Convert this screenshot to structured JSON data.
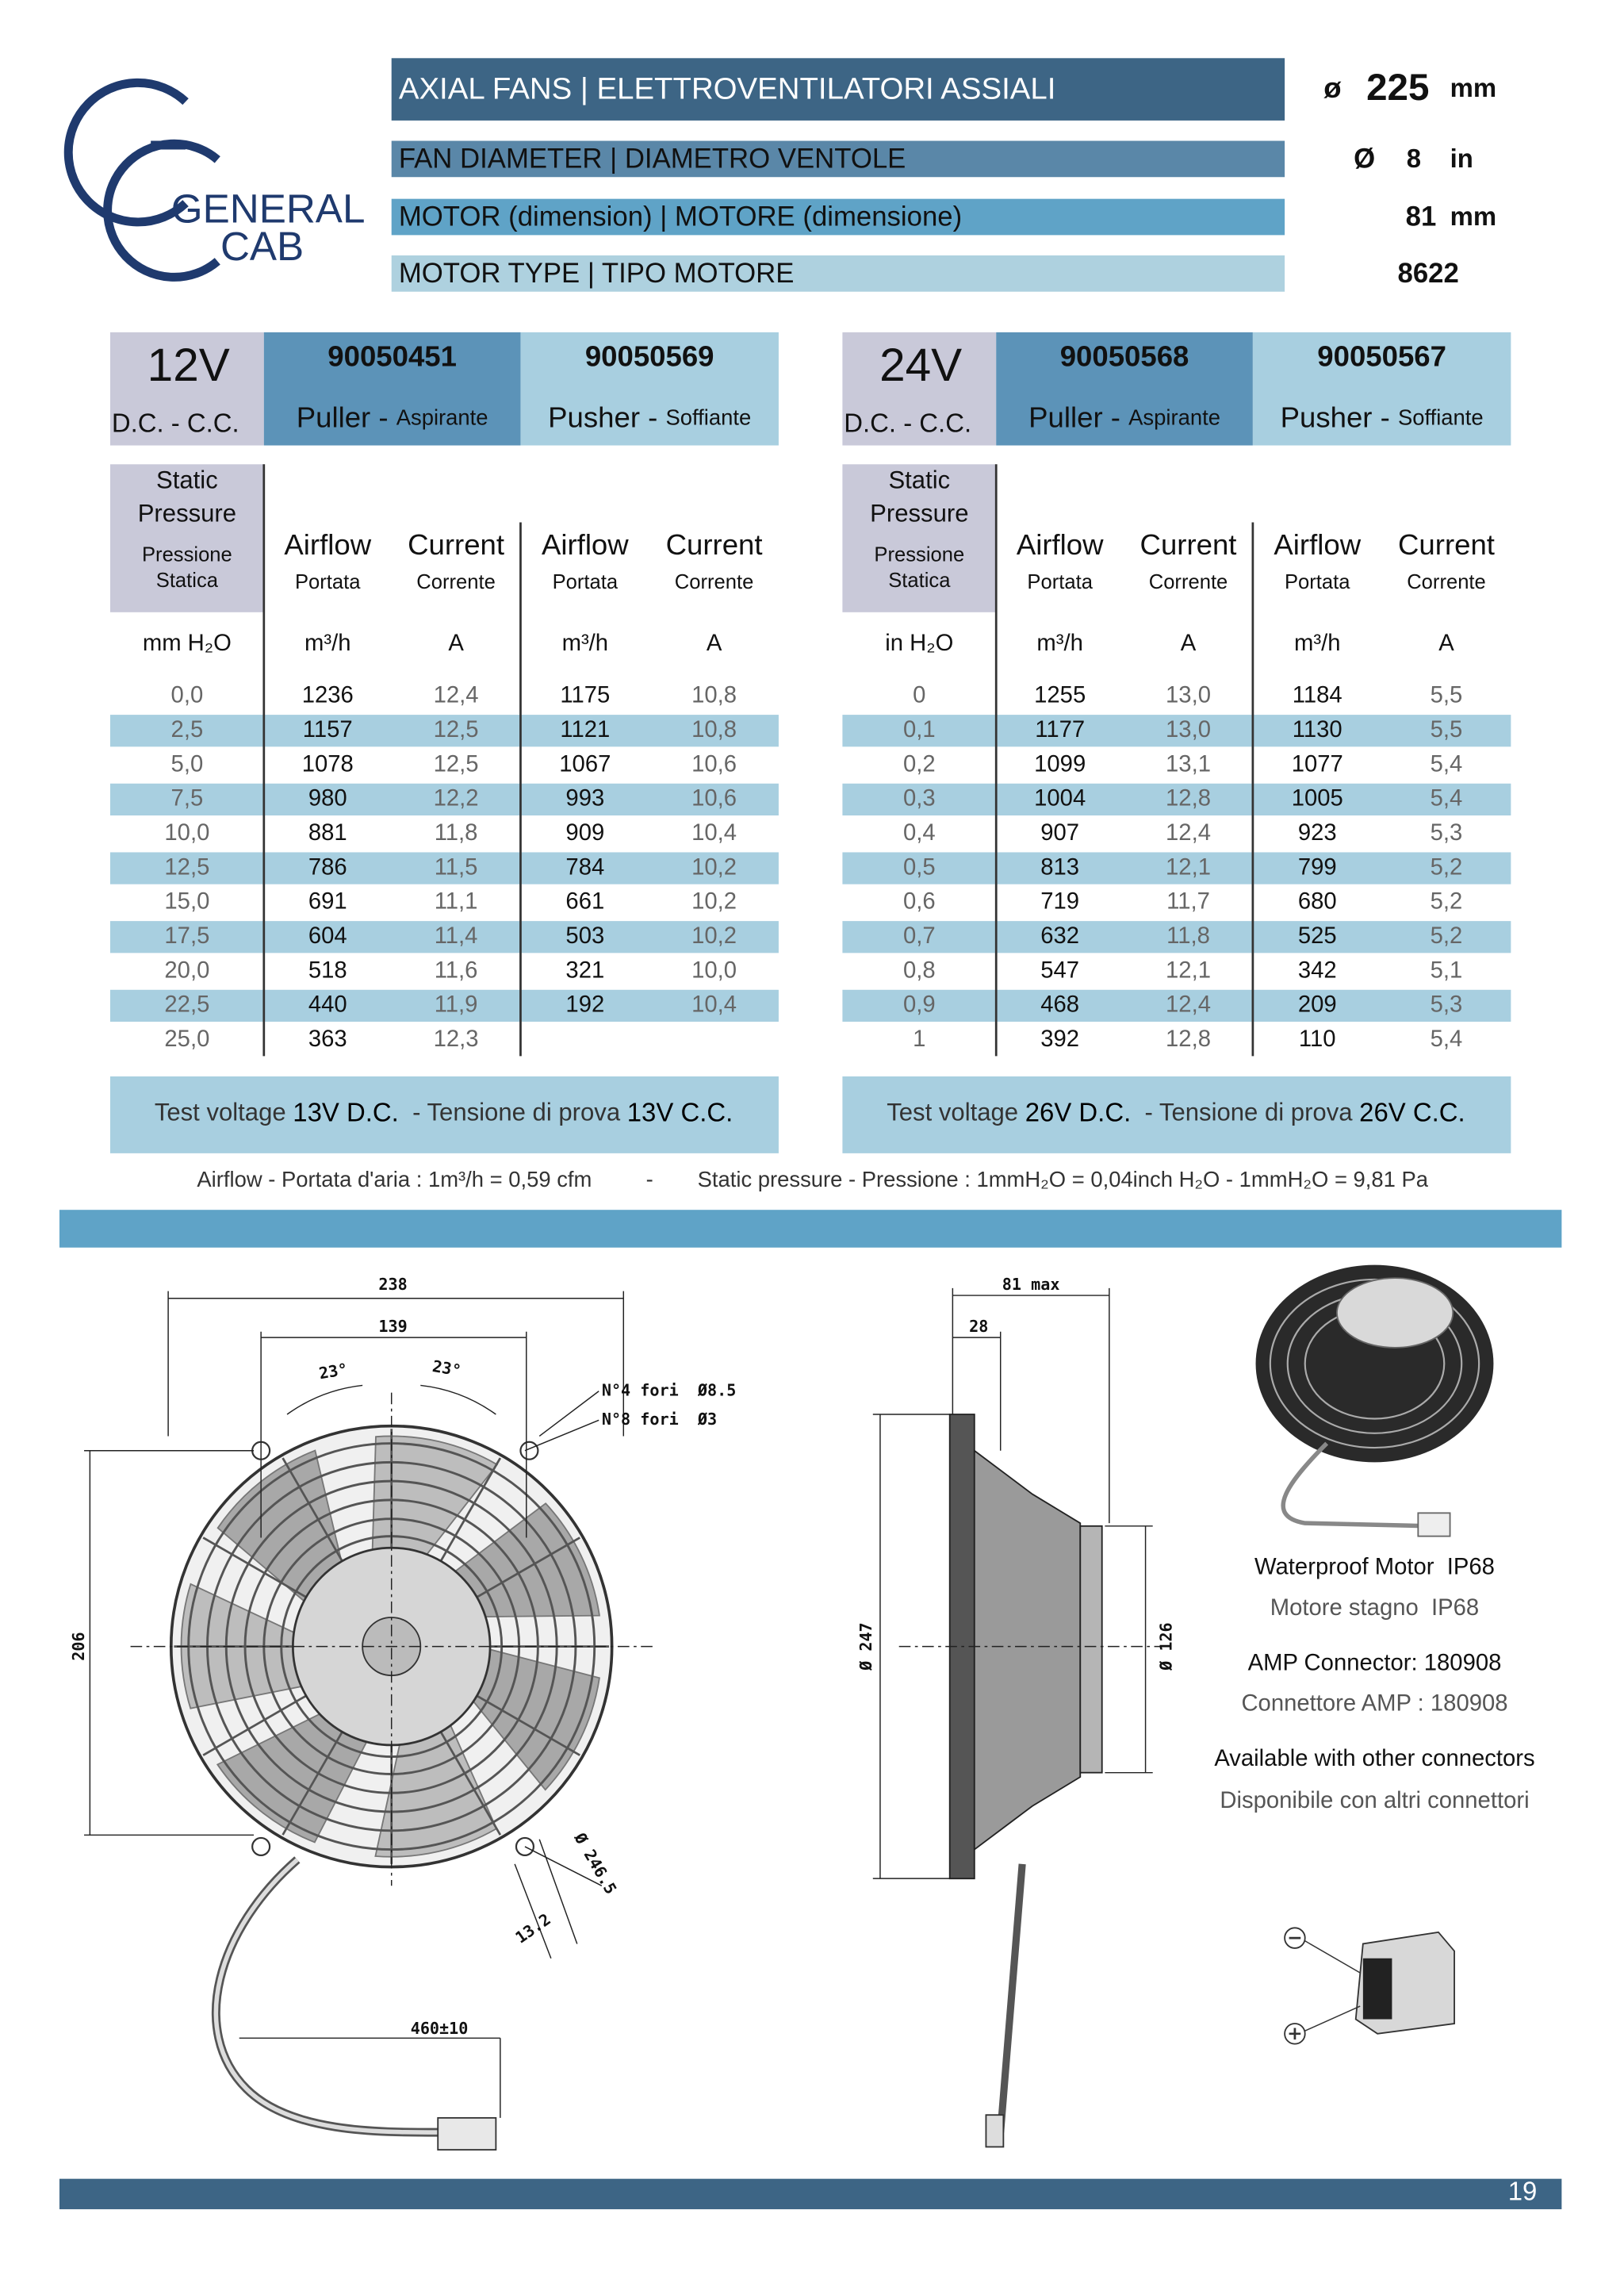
{
  "header": {
    "logo": [
      "GENERAL",
      "CAB"
    ],
    "rows": [
      {
        "label": "AXIAL FANS | ELETTROVENTILATORI ASSIALI",
        "symbol": "ø",
        "value": "225",
        "unit": "mm"
      },
      {
        "label": "FAN DIAMETER | DIAMETRO VENTOLE",
        "symbol": "Ø",
        "value": "8",
        "unit": "in"
      },
      {
        "label": "MOTOR (dimension) | MOTORE (dimensione)",
        "value": "81",
        "unit": "mm"
      },
      {
        "label": "MOTOR TYPE | TIPO MOTORE",
        "value": "8622"
      }
    ]
  },
  "tables": [
    {
      "voltage": "12V",
      "current_type": "D.C. - C.C.",
      "models": [
        {
          "code": "90050451",
          "type": "Puller - ",
          "type_it": "Aspirante"
        },
        {
          "code": "90050569",
          "type": "Pusher - ",
          "type_it": "Soffiante"
        }
      ],
      "pressure_header": [
        "Static",
        "Pressure",
        "Pressione",
        "Statica"
      ],
      "columns": [
        {
          "name": "Airflow",
          "name_it": "Portata"
        },
        {
          "name": "Current",
          "name_it": "Corrente"
        },
        {
          "name": "Airflow",
          "name_it": "Portata"
        },
        {
          "name": "Current",
          "name_it": "Corrente"
        }
      ],
      "units": [
        "mm H₂O",
        "m³/h",
        "A",
        "m³/h",
        "A"
      ],
      "rows": [
        [
          "0,0",
          "1236",
          "12,4",
          "1175",
          "10,8"
        ],
        [
          "2,5",
          "1157",
          "12,5",
          "1121",
          "10,8"
        ],
        [
          "5,0",
          "1078",
          "12,5",
          "1067",
          "10,6"
        ],
        [
          "7,5",
          "980",
          "12,2",
          "993",
          "10,6"
        ],
        [
          "10,0",
          "881",
          "11,8",
          "909",
          "10,4"
        ],
        [
          "12,5",
          "786",
          "11,5",
          "784",
          "10,2"
        ],
        [
          "15,0",
          "691",
          "11,1",
          "661",
          "10,2"
        ],
        [
          "17,5",
          "604",
          "11,4",
          "503",
          "10,2"
        ],
        [
          "20,0",
          "518",
          "11,6",
          "321",
          "10,0"
        ],
        [
          "22,5",
          "440",
          "11,9",
          "192",
          "10,4"
        ],
        [
          "25,0",
          "363",
          "12,3"
        ]
      ],
      "test_voltage": [
        "Test voltage ",
        "13V D.C.",
        "  - Tensione di prova ",
        "13V C.C."
      ]
    },
    {
      "voltage": "24V",
      "current_type": "D.C. - C.C.",
      "models": [
        {
          "code": "90050568",
          "type": "Puller - ",
          "type_it": "Aspirante"
        },
        {
          "code": "90050567",
          "type": "Pusher - ",
          "type_it": "Soffiante"
        }
      ],
      "pressure_header": [
        "Static",
        "Pressure",
        "Pressione",
        "Statica"
      ],
      "columns": [
        {
          "name": "Airflow",
          "name_it": "Portata"
        },
        {
          "name": "Current",
          "name_it": "Corrente"
        },
        {
          "name": "Airflow",
          "name_it": "Portata"
        },
        {
          "name": "Current",
          "name_it": "Corrente"
        }
      ],
      "units": [
        "in H₂O",
        "m³/h",
        "A",
        "m³/h",
        "A"
      ],
      "rows": [
        [
          "0",
          "1255",
          "13,0",
          "1184",
          "5,5"
        ],
        [
          "0,1",
          "1177",
          "13,0",
          "1130",
          "5,5"
        ],
        [
          "0,2",
          "1099",
          "13,1",
          "1077",
          "5,4"
        ],
        [
          "0,3",
          "1004",
          "12,8",
          "1005",
          "5,4"
        ],
        [
          "0,4",
          "907",
          "12,4",
          "923",
          "5,3"
        ],
        [
          "0,5",
          "813",
          "12,1",
          "799",
          "5,2"
        ],
        [
          "0,6",
          "719",
          "11,7",
          "680",
          "5,2"
        ],
        [
          "0,7",
          "632",
          "11,8",
          "525",
          "5,2"
        ],
        [
          "0,8",
          "547",
          "12,1",
          "342",
          "5,1"
        ],
        [
          "0,9",
          "468",
          "12,4",
          "209",
          "5,3"
        ],
        [
          "1",
          "392",
          "12,8",
          "110",
          "5,4"
        ]
      ],
      "test_voltage": [
        "Test voltage ",
        "26V D.C.",
        "  - Tensione di prova ",
        "26V C.C."
      ]
    }
  ],
  "conversion_note": [
    "Airflow - Portata d'aria : 1m³/h = 0,59 cfm",
    "-",
    "Static pressure - Pressione : 1mmH₂O = 0,04inch H₂O - 1mmH₂O = 9,81 Pa"
  ],
  "drawing": {
    "front_labels": [
      "238",
      "139",
      "23°",
      "23°",
      "N°4 fori  Ø8.5",
      "N°8 fori  Ø3",
      "206",
      "Ø 246.5",
      "13.2",
      "460±10"
    ],
    "side_labels": [
      "81 max",
      "28",
      "Ø 247",
      "Ø 126"
    ]
  },
  "features": [
    "Waterproof Motor  IP68",
    "Motore stagno  IP68",
    "AMP Connector: 180908",
    "Connettore AMP : 180908",
    "Available with other connectors",
    "Disponibile con altri connettori"
  ],
  "page_number": "19"
}
